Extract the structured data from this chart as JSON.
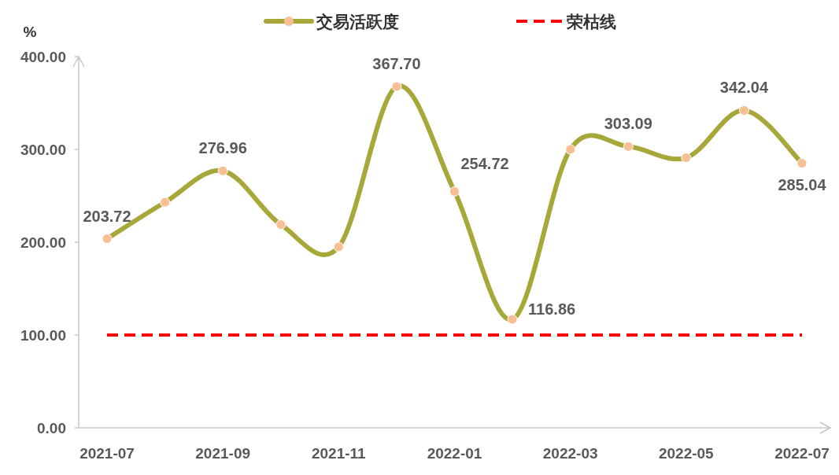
{
  "chart_data": {
    "type": "line",
    "ylabel": "%",
    "categories": [
      "2021-07",
      null,
      "2021-09",
      null,
      "2021-11",
      null,
      "2022-01",
      null,
      "2022-03",
      null,
      "2022-05",
      null,
      "2022-07"
    ],
    "series": [
      {
        "name": "交易活跃度",
        "color": "#a8a83a",
        "values": [
          203.72,
          243,
          276.96,
          219,
          195,
          367.7,
          254.72,
          116.86,
          300,
          303.09,
          291,
          342.04,
          285.04
        ],
        "value_labels": [
          "203.72",
          null,
          "276.96",
          null,
          null,
          "367.70",
          "254.72",
          "116.86",
          null,
          "303.09",
          null,
          "342.04",
          "285.04"
        ]
      }
    ],
    "marker": "circle",
    "ref_lines": [
      {
        "axis": "y",
        "value": 100,
        "label": "荣枯线",
        "color": "#ff0000",
        "line_style": "dashed"
      }
    ],
    "ylim": [
      0,
      400
    ],
    "yticks": [
      {
        "value": 0,
        "label": "0.00"
      },
      {
        "value": 100,
        "label": "100.00"
      },
      {
        "value": 200,
        "label": "200.00"
      },
      {
        "value": 300,
        "label": "300.00"
      },
      {
        "value": 400,
        "label": "400.00"
      }
    ],
    "grid": false,
    "legend": "top"
  }
}
